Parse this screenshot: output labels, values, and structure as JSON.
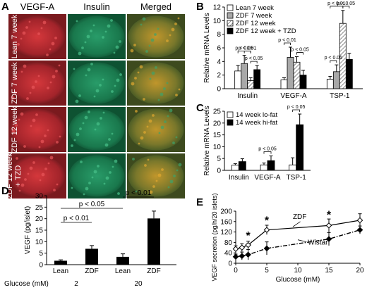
{
  "panels": {
    "A": "A",
    "B": "B",
    "C": "C",
    "D": "D",
    "E": "E"
  },
  "micrographs": {
    "columns": [
      "VEGF-A",
      "Insulin",
      "Merged"
    ],
    "rows": [
      [
        "Lean 7 week"
      ],
      [
        "ZDF 7 week"
      ],
      [
        "ZDF 12 week"
      ],
      [
        "ZDF 12 week",
        "+ TZD"
      ]
    ],
    "colors": {
      "vegf": "#b8272c",
      "insulin": "#1f8a5a",
      "merged": "#8a7a2a"
    }
  },
  "chart_data": [
    {
      "panel": "B",
      "type": "bar",
      "categories": [
        "Insulin",
        "VEGF-A",
        "TSP-1"
      ],
      "ylabel": "Relative mRNA Levels",
      "ylim": [
        0,
        12
      ],
      "yticks": [
        0,
        2,
        4,
        6,
        8,
        10,
        12
      ],
      "series": [
        {
          "name": "Lean 7 week",
          "values": [
            2.6,
            1.3,
            1.4
          ],
          "errors": [
            0.8,
            0.3,
            0.4
          ],
          "color": "#ffffff",
          "pattern": "none"
        },
        {
          "name": "ZDF 7 week",
          "values": [
            3.7,
            4.6,
            2.5
          ],
          "errors": [
            1.2,
            1.5,
            1.0
          ],
          "color": "#a8a8a8",
          "pattern": "none"
        },
        {
          "name": "ZDF 12 week",
          "values": [
            1.2,
            3.9,
            9.6
          ],
          "errors": [
            0.4,
            0.8,
            1.9
          ],
          "color": "#ffffff",
          "pattern": "hatch"
        },
        {
          "name": "ZDF 12 week + TZD",
          "values": [
            2.8,
            2.0,
            4.3
          ],
          "errors": [
            0.6,
            0.7,
            0.9
          ],
          "color": "#000000",
          "pattern": "none"
        }
      ],
      "annotations": [
        {
          "text": "p < 0.05",
          "group": 0,
          "from": 0,
          "to": 2
        },
        {
          "text": "p < 0.01",
          "group": 0,
          "from": 1,
          "to": 2
        },
        {
          "text": "p < 0.05",
          "group": 0,
          "from": 2,
          "to": 3
        },
        {
          "text": "p < 0.01",
          "group": 1,
          "from": 0,
          "to": 1
        },
        {
          "text": "p < 0.05",
          "group": 1,
          "from": 2,
          "to": 3
        },
        {
          "text": "p < 0.05",
          "group": 2,
          "from": 0,
          "to": 1
        },
        {
          "text": "p < 0.01",
          "group": 2,
          "from": 0,
          "to": 2
        },
        {
          "text": "p < 0.05",
          "group": 2,
          "from": 2,
          "to": 3
        }
      ],
      "legend_position": "top-left"
    },
    {
      "panel": "C",
      "type": "bar",
      "categories": [
        "Insulin",
        "VEGF-A",
        "TSP-1"
      ],
      "ylabel": "Relative mRNA Levels",
      "ylim": [
        0,
        25
      ],
      "yticks": [
        0,
        5,
        10,
        15,
        20,
        25
      ],
      "series": [
        {
          "name": "14 week lo-fat",
          "values": [
            2.2,
            2.3,
            2.3
          ],
          "errors": [
            0.6,
            0.8,
            3.0
          ],
          "color": "#ffffff",
          "pattern": "none"
        },
        {
          "name": "14 week hi-fat",
          "values": [
            3.7,
            4.1,
            19.3
          ],
          "errors": [
            1.2,
            2.0,
            4.5
          ],
          "color": "#000000",
          "pattern": "none"
        }
      ],
      "annotations": [
        {
          "text": "p < 0.05",
          "group": 1,
          "from": 0,
          "to": 1
        },
        {
          "text": "p < 0.05",
          "group": 2,
          "from": 0,
          "to": 1
        }
      ],
      "legend_position": "top-left"
    },
    {
      "panel": "D",
      "type": "bar",
      "categories": [
        "Lean",
        "ZDF",
        "Lean",
        "ZDF"
      ],
      "glucose_label": "Glucose (mM)",
      "glucose_groups": [
        "2",
        "20"
      ],
      "ylabel": "VEGF (pg/islet)",
      "ylim": [
        0,
        30
      ],
      "yticks": [
        0,
        5,
        10,
        15,
        20,
        25,
        30
      ],
      "values": [
        1.7,
        6.9,
        3.4,
        20.1
      ],
      "errors": [
        0.4,
        1.4,
        1.3,
        3.2
      ],
      "color": "#000000",
      "annotations": [
        {
          "text": "p < 0.05",
          "from": 0,
          "to": 2
        },
        {
          "text": "p < 0.01",
          "from": 0,
          "to": 1
        },
        {
          "text": "p < 0.01",
          "from": 2,
          "to": 3
        }
      ]
    },
    {
      "panel": "E",
      "type": "line",
      "xlabel": "Glucose (mM)",
      "ylabel": "VEGF secretion (pg/h/20 islets)",
      "xlim": [
        0,
        20
      ],
      "ylim": [
        0,
        200
      ],
      "xticks": [
        0,
        5,
        10,
        15,
        20
      ],
      "yticks": [
        0,
        40,
        80,
        120,
        160,
        200
      ],
      "series": [
        {
          "name": "ZDF",
          "x": [
            0,
            1,
            2,
            5,
            15,
            20
          ],
          "y": [
            55,
            60,
            70,
            128,
            145,
            165
          ],
          "errors": [
            12,
            15,
            15,
            18,
            25,
            25
          ],
          "marker": "open-diamond",
          "style": "solid"
        },
        {
          "name": "Wistar",
          "x": [
            0,
            1,
            2,
            5,
            15,
            20
          ],
          "y": [
            25,
            28,
            33,
            57,
            93,
            128
          ],
          "errors": [
            10,
            15,
            20,
            25,
            25,
            15
          ],
          "marker": "filled-diamond",
          "style": "dash-dot"
        }
      ],
      "significance": [
        {
          "text": "*",
          "x": 2,
          "y": 92
        },
        {
          "text": "*",
          "x": 5,
          "y": 150
        },
        {
          "text": "*",
          "x": 15,
          "y": 172
        }
      ]
    }
  ]
}
